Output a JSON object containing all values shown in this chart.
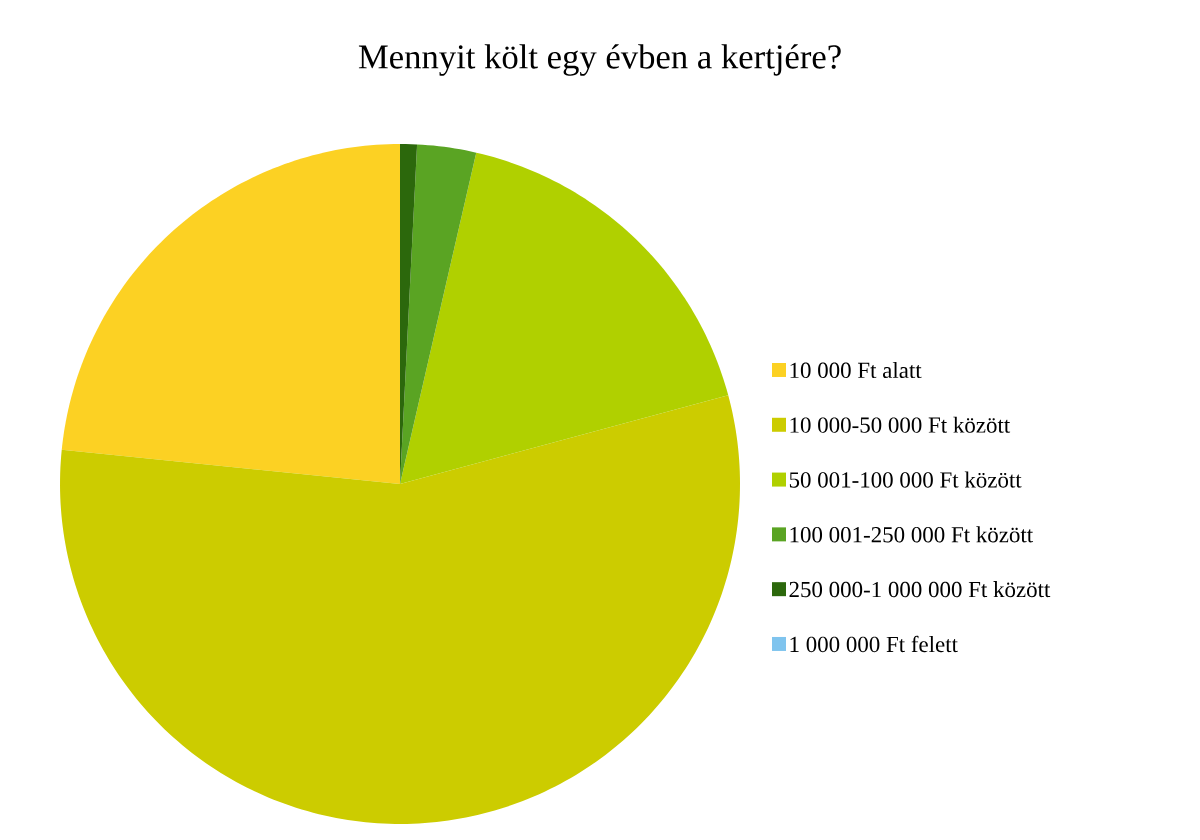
{
  "chart_data": {
    "type": "pie",
    "title": "Mennyit költ egy évben a kertjére?",
    "categories": [
      "10 000 Ft alatt",
      "10 000-50 000 Ft között",
      "50 001-100 000 Ft között",
      "100 001-250 000 Ft között",
      "250 000-1 000 000 Ft között",
      "1 000 000 Ft felett"
    ],
    "values": [
      23.4,
      55.8,
      17.2,
      2.8,
      0.8,
      0
    ],
    "colors": [
      "#fcd123",
      "#cccc00",
      "#b0d000",
      "#5aa423",
      "#2c680c",
      "#7fc4ee"
    ],
    "legend": "right"
  }
}
